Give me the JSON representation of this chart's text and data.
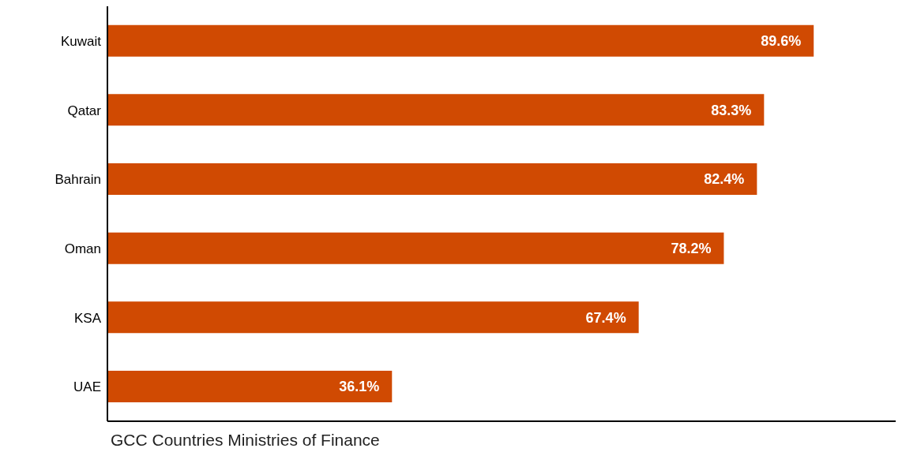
{
  "chart_data": {
    "type": "bar",
    "orientation": "horizontal",
    "categories": [
      "Kuwait",
      "Qatar",
      "Bahrain",
      "Oman",
      "KSA",
      "UAE"
    ],
    "values": [
      89.6,
      83.3,
      82.4,
      78.2,
      67.4,
      36.1
    ],
    "value_labels": [
      "89.6%",
      "83.3%",
      "82.4%",
      "78.2%",
      "67.4%",
      "36.1%"
    ],
    "color": "#d04a02",
    "grid": false,
    "legend": false,
    "tick_labels": "y",
    "annotations": [
      "GCC Countries Ministries of Finance"
    ]
  }
}
